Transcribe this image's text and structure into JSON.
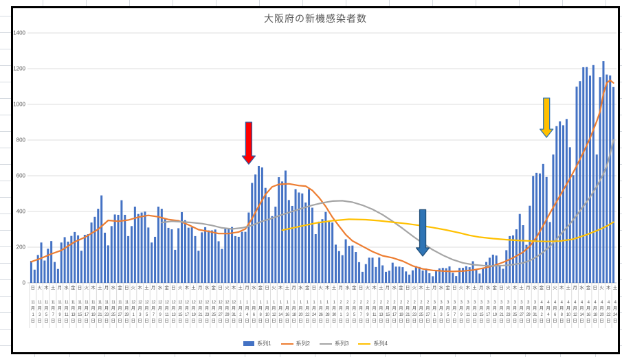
{
  "chart_data": {
    "type": "bar+line combo",
    "title": "大阪府の新機感染者数",
    "grid": true,
    "legend_position": "bottom",
    "y_axis": {
      "min": 0,
      "max": 1400,
      "step": 200,
      "tick_labels": [
        "0",
        "200",
        "400",
        "600",
        "800",
        "1000",
        "1200",
        "1400"
      ]
    },
    "x_axis": {
      "month_suffix": "月",
      "day_suffix": "日",
      "tick_labels": [
        [
          "日",
          11,
          1
        ],
        [
          "火",
          11,
          3
        ],
        [
          "木",
          11,
          5
        ],
        [
          "土",
          11,
          7
        ],
        [
          "月",
          11,
          9
        ],
        [
          "水",
          11,
          11
        ],
        [
          "金",
          11,
          13
        ],
        [
          "日",
          11,
          15
        ],
        [
          "火",
          11,
          17
        ],
        [
          "木",
          11,
          19
        ],
        [
          "土",
          11,
          21
        ],
        [
          "月",
          11,
          23
        ],
        [
          "水",
          11,
          25
        ],
        [
          "金",
          11,
          27
        ],
        [
          "日",
          11,
          29
        ],
        [
          "火",
          12,
          1
        ],
        [
          "木",
          12,
          3
        ],
        [
          "土",
          12,
          5
        ],
        [
          "月",
          12,
          7
        ],
        [
          "水",
          12,
          9
        ],
        [
          "金",
          12,
          11
        ],
        [
          "日",
          12,
          13
        ],
        [
          "火",
          12,
          15
        ],
        [
          "木",
          12,
          17
        ],
        [
          "土",
          12,
          19
        ],
        [
          "月",
          12,
          21
        ],
        [
          "水",
          12,
          23
        ],
        [
          "金",
          12,
          25
        ],
        [
          "日",
          12,
          27
        ],
        [
          "火",
          12,
          29
        ],
        [
          "木",
          12,
          31
        ],
        [
          "土",
          1,
          2
        ],
        [
          "月",
          1,
          4
        ],
        [
          "水",
          1,
          6
        ],
        [
          "金",
          1,
          8
        ],
        [
          "日",
          1,
          10
        ],
        [
          "火",
          1,
          12
        ],
        [
          "木",
          1,
          14
        ],
        [
          "土",
          1,
          16
        ],
        [
          "月",
          1,
          18
        ],
        [
          "水",
          1,
          20
        ],
        [
          "金",
          1,
          22
        ],
        [
          "日",
          1,
          24
        ],
        [
          "火",
          1,
          26
        ],
        [
          "木",
          1,
          28
        ],
        [
          "土",
          1,
          30
        ],
        [
          "月",
          2,
          1
        ],
        [
          "水",
          2,
          3
        ],
        [
          "金",
          2,
          5
        ],
        [
          "日",
          2,
          7
        ],
        [
          "火",
          2,
          9
        ],
        [
          "木",
          2,
          11
        ],
        [
          "土",
          2,
          13
        ],
        [
          "月",
          2,
          15
        ],
        [
          "水",
          2,
          17
        ],
        [
          "金",
          2,
          19
        ],
        [
          "日",
          2,
          21
        ],
        [
          "火",
          2,
          23
        ],
        [
          "木",
          2,
          25
        ],
        [
          "土",
          2,
          27
        ],
        [
          "月",
          3,
          1
        ],
        [
          "水",
          3,
          3
        ],
        [
          "金",
          3,
          5
        ],
        [
          "日",
          3,
          7
        ],
        [
          "火",
          3,
          9
        ],
        [
          "木",
          3,
          11
        ],
        [
          "土",
          3,
          13
        ],
        [
          "月",
          3,
          15
        ],
        [
          "水",
          3,
          17
        ],
        [
          "金",
          3,
          19
        ],
        [
          "日",
          3,
          21
        ],
        [
          "火",
          3,
          23
        ],
        [
          "木",
          3,
          25
        ],
        [
          "土",
          3,
          27
        ],
        [
          "月",
          3,
          29
        ],
        [
          "水",
          3,
          31
        ],
        [
          "金",
          4,
          2
        ],
        [
          "日",
          4,
          4
        ],
        [
          "火",
          4,
          6
        ],
        [
          "木",
          4,
          8
        ],
        [
          "土",
          4,
          10
        ],
        [
          "月",
          4,
          12
        ],
        [
          "水",
          4,
          14
        ],
        [
          "金",
          4,
          16
        ],
        [
          "日",
          4,
          18
        ],
        [
          "火",
          4,
          20
        ],
        [
          "木",
          4,
          22
        ],
        [
          "土",
          4,
          24
        ]
      ]
    },
    "series": [
      {
        "name": "系列1",
        "type": "bar",
        "color": "#4472C4",
        "values": [
          123,
          74,
          156,
          226,
          125,
          191,
          234,
          117,
          78,
          226,
          256,
          231,
          263,
          285,
          266,
          180,
          269,
          273,
          338,
          370,
          415,
          490,
          281,
          210,
          318,
          383,
          381,
          463,
          381,
          262,
          318,
          427,
          386,
          394,
          399,
          310,
          226,
          258,
          427,
          415,
          357,
          308,
          300,
          185,
          306,
          396,
          351,
          309,
          311,
          262,
          180,
          283,
          312,
          294,
          294,
          299,
          233,
          190,
          302,
          307,
          313,
          262,
          258,
          286,
          286,
          394,
          560,
          607,
          654,
          647,
          532,
          480,
          374,
          427,
          592,
          568,
          629,
          464,
          431,
          525,
          506,
          501,
          450,
          525,
          421,
          273,
          343,
          357,
          397,
          346,
          338,
          214,
          178,
          155,
          244,
          207,
          209,
          173,
          116,
          62,
          105,
          141,
          141,
          89,
          142,
          98,
          62,
          68,
          113,
          91,
          91,
          88,
          64,
          46,
          70,
          94,
          89,
          69,
          80,
          54,
          37,
          65,
          81,
          84,
          82,
          92,
          56,
          38,
          84,
          84,
          93,
          88,
          121,
          75,
          52,
          83,
          117,
          141,
          158,
          153,
          100,
          79,
          183,
          262,
          266,
          300,
          386,
          323,
          213,
          432,
          599,
          616,
          613,
          666,
          593,
          341,
          719,
          878,
          905,
          883,
          918,
          760,
          603,
          1099,
          1130,
          1208,
          1209,
          1161,
          1220,
          719,
          1153,
          1242,
          1167,
          1162,
          1097
        ]
      },
      {
        "name": "系列2",
        "type": "line",
        "color": "#ED7D31",
        "points": [
          [
            0,
            118
          ],
          [
            3,
            138
          ],
          [
            6,
            162
          ],
          [
            9,
            182
          ],
          [
            13,
            230
          ],
          [
            16,
            255
          ],
          [
            20,
            300
          ],
          [
            23,
            350
          ],
          [
            26,
            345
          ],
          [
            29,
            352
          ],
          [
            32,
            368
          ],
          [
            35,
            378
          ],
          [
            38,
            370
          ],
          [
            41,
            355
          ],
          [
            44,
            348
          ],
          [
            47,
            325
          ],
          [
            50,
            298
          ],
          [
            53,
            288
          ],
          [
            56,
            276
          ],
          [
            59,
            276
          ],
          [
            62,
            285
          ],
          [
            64,
            302
          ],
          [
            66,
            360
          ],
          [
            68,
            430
          ],
          [
            70,
            495
          ],
          [
            72,
            538
          ],
          [
            74,
            552
          ],
          [
            77,
            555
          ],
          [
            80,
            545
          ],
          [
            82,
            542
          ],
          [
            84,
            518
          ],
          [
            86,
            478
          ],
          [
            88,
            428
          ],
          [
            90,
            368
          ],
          [
            92,
            318
          ],
          [
            94,
            270
          ],
          [
            96,
            235
          ],
          [
            99,
            205
          ],
          [
            102,
            175
          ],
          [
            105,
            152
          ],
          [
            108,
            140
          ],
          [
            111,
            122
          ],
          [
            114,
            95
          ],
          [
            117,
            78
          ],
          [
            120,
            70
          ],
          [
            123,
            66
          ],
          [
            126,
            64
          ],
          [
            129,
            66
          ],
          [
            132,
            72
          ],
          [
            135,
            82
          ],
          [
            138,
            95
          ],
          [
            141,
            115
          ],
          [
            144,
            140
          ],
          [
            147,
            172
          ],
          [
            149,
            205
          ],
          [
            151,
            255
          ],
          [
            153,
            320
          ],
          [
            155,
            390
          ],
          [
            157,
            455
          ],
          [
            159,
            520
          ],
          [
            161,
            585
          ],
          [
            163,
            655
          ],
          [
            165,
            730
          ],
          [
            167,
            810
          ],
          [
            169,
            905
          ],
          [
            170,
            960
          ],
          [
            171,
            1060
          ],
          [
            172,
            1120
          ],
          [
            173,
            1135
          ],
          [
            174,
            1120
          ]
        ]
      },
      {
        "name": "系列3",
        "type": "line",
        "color": "#A5A5A5",
        "points": [
          [
            39,
            338
          ],
          [
            42,
            345
          ],
          [
            45,
            342
          ],
          [
            48,
            338
          ],
          [
            51,
            332
          ],
          [
            54,
            322
          ],
          [
            57,
            308
          ],
          [
            60,
            302
          ],
          [
            63,
            308
          ],
          [
            66,
            322
          ],
          [
            69,
            345
          ],
          [
            72,
            362
          ],
          [
            75,
            382
          ],
          [
            78,
            400
          ],
          [
            81,
            418
          ],
          [
            84,
            435
          ],
          [
            87,
            448
          ],
          [
            90,
            458
          ],
          [
            93,
            460
          ],
          [
            96,
            452
          ],
          [
            99,
            435
          ],
          [
            102,
            412
          ],
          [
            105,
            382
          ],
          [
            108,
            345
          ],
          [
            111,
            305
          ],
          [
            114,
            262
          ],
          [
            117,
            222
          ],
          [
            120,
            185
          ],
          [
            123,
            155
          ],
          [
            126,
            130
          ],
          [
            129,
            112
          ],
          [
            132,
            102
          ],
          [
            135,
            97
          ],
          [
            138,
            95
          ],
          [
            141,
            97
          ],
          [
            144,
            102
          ],
          [
            147,
            112
          ],
          [
            149,
            125
          ],
          [
            151,
            145
          ],
          [
            153,
            172
          ],
          [
            155,
            205
          ],
          [
            157,
            245
          ],
          [
            159,
            288
          ],
          [
            161,
            330
          ],
          [
            163,
            378
          ],
          [
            165,
            428
          ],
          [
            167,
            480
          ],
          [
            169,
            540
          ],
          [
            171,
            610
          ],
          [
            172,
            655
          ],
          [
            173,
            720
          ],
          [
            174,
            800
          ]
        ]
      },
      {
        "name": "系列4",
        "type": "line",
        "color": "#FFC000",
        "points": [
          [
            75,
            295
          ],
          [
            80,
            315
          ],
          [
            85,
            335
          ],
          [
            90,
            348
          ],
          [
            95,
            356
          ],
          [
            100,
            354
          ],
          [
            104,
            348
          ],
          [
            108,
            340
          ],
          [
            112,
            332
          ],
          [
            116,
            322
          ],
          [
            120,
            310
          ],
          [
            124,
            296
          ],
          [
            128,
            280
          ],
          [
            131,
            266
          ],
          [
            134,
            256
          ],
          [
            138,
            248
          ],
          [
            142,
            242
          ],
          [
            146,
            237
          ],
          [
            150,
            234
          ],
          [
            154,
            232
          ],
          [
            158,
            234
          ],
          [
            162,
            245
          ],
          [
            166,
            270
          ],
          [
            170,
            300
          ],
          [
            172,
            318
          ],
          [
            174,
            340
          ]
        ]
      }
    ],
    "annotations": [
      {
        "id": "red-arrow",
        "fill": "#FF0000",
        "border": "#2E5B9F",
        "day": 65,
        "value_top": 900,
        "value_tip": 665
      },
      {
        "id": "blue-arrow",
        "fill": "#2E74B5",
        "border": "#1F4E79",
        "day": 117,
        "value_top": 410,
        "value_tip": 150
      },
      {
        "id": "yellow-arrow",
        "fill": "#FFC000",
        "border": "#2E74B5",
        "day": 154,
        "value_top": 1035,
        "value_tip": 815
      }
    ],
    "legend": [
      "系列1",
      "系列2",
      "系列3",
      "系列4"
    ]
  }
}
